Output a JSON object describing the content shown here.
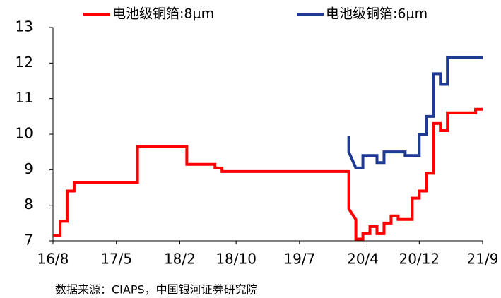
{
  "chart_data": {
    "type": "line",
    "source": "数据来源：CIAPS，中国银河证券研究院",
    "xlim": [
      "16/8",
      "21/9"
    ],
    "xticks": [
      "16/8",
      "17/5",
      "18/2",
      "18/10",
      "19/7",
      "20/4",
      "20/12",
      "21/9"
    ],
    "ylim": [
      7,
      13
    ],
    "yticks": [
      7,
      8,
      9,
      10,
      11,
      12,
      13
    ],
    "legend": "top",
    "series": [
      {
        "name": "电池级铜箔:8μm",
        "color": "#ff0000",
        "x": [
          "16/8",
          "16/9",
          "16/9",
          "16/10",
          "16/10",
          "16/10",
          "16/11",
          "16/11",
          "17/8",
          "17/8",
          "18/3",
          "18/3",
          "18/7",
          "18/7",
          "18/8",
          "18/8",
          "20/2",
          "20/2",
          "20/3",
          "20/3",
          "20/4",
          "20/4",
          "20/5",
          "20/5",
          "20/6",
          "20/6",
          "20/7",
          "20/7",
          "20/8",
          "20/8",
          "20/9",
          "20/9",
          "20/11",
          "20/11",
          "20/12",
          "20/12",
          "21/1",
          "21/1",
          "21/2",
          "21/2",
          "21/3",
          "21/3",
          "21/4",
          "21/4",
          "21/8",
          "21/8",
          "21/9"
        ],
        "values": [
          7.15,
          7.15,
          7.55,
          7.55,
          7.9,
          8.4,
          8.4,
          8.65,
          8.65,
          9.65,
          9.65,
          9.15,
          9.15,
          9.05,
          9.05,
          8.95,
          8.95,
          7.9,
          7.6,
          7.05,
          7.05,
          7.2,
          7.2,
          7.4,
          7.4,
          7.2,
          7.2,
          7.5,
          7.5,
          7.7,
          7.7,
          7.6,
          7.6,
          8.2,
          8.2,
          8.4,
          8.4,
          8.9,
          8.9,
          10.3,
          10.3,
          10.1,
          10.1,
          10.6,
          10.6,
          10.7,
          10.7
        ]
      },
      {
        "name": "电池级铜箔:6μm",
        "color": "#1f3a93",
        "x": [
          "20/2",
          "20/2",
          "20/3",
          "20/4",
          "20/4",
          "20/6",
          "20/6",
          "20/7",
          "20/7",
          "20/10",
          "20/10",
          "20/12",
          "20/12",
          "20/12",
          "21/1",
          "21/1",
          "21/2",
          "21/2",
          "21/3",
          "21/3",
          "21/4",
          "21/4",
          "21/9"
        ],
        "values": [
          9.95,
          9.5,
          9.05,
          9.05,
          9.4,
          9.4,
          9.2,
          9.2,
          9.5,
          9.5,
          9.4,
          9.4,
          9.85,
          10.0,
          10.0,
          10.5,
          10.5,
          11.7,
          11.7,
          11.4,
          11.4,
          12.15,
          12.15
        ]
      }
    ]
  }
}
